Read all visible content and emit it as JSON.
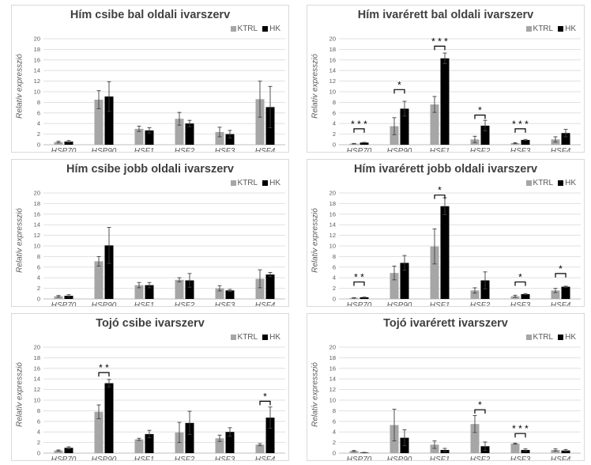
{
  "legend": {
    "ctrl": "KTRL",
    "heat": "HK"
  },
  "colors": {
    "ctrl": "#a6a6a6",
    "heat": "#000000",
    "grid": "#d9d9d9",
    "text": "#595959"
  },
  "chart_data": [
    {
      "type": "bar",
      "title": "Hím csibe bal oldali ivarszerv",
      "ylabel": "Relatív expresszió",
      "ylim": [
        0,
        20
      ],
      "yticks": [
        "0",
        "2",
        "4",
        "6",
        "8",
        "10",
        "12",
        "14",
        "16",
        "18",
        "20"
      ],
      "categories": [
        "HSP70",
        "HSP90",
        "HSF1",
        "HSF2",
        "HSF3",
        "HSF4"
      ],
      "series": [
        {
          "name": "KTRL",
          "values": [
            0.5,
            8.5,
            3.0,
            4.9,
            2.4,
            8.6
          ],
          "errors": [
            0.15,
            1.7,
            0.5,
            1.2,
            0.9,
            3.4
          ]
        },
        {
          "name": "HK",
          "values": [
            0.6,
            9.1,
            2.7,
            4.0,
            2.0,
            7.1
          ],
          "errors": [
            0.2,
            2.8,
            0.5,
            0.6,
            0.7,
            3.9
          ]
        }
      ],
      "significance": []
    },
    {
      "type": "bar",
      "title": "Hím ivarérett bal oldali ivarszerv",
      "ylabel": "Relatív expresszió",
      "ylim": [
        0,
        20
      ],
      "yticks": [
        "0",
        "2",
        "4",
        "6",
        "8",
        "10",
        "12",
        "14",
        "16",
        "18",
        "20"
      ],
      "categories": [
        "HSP70",
        "HSP90",
        "HSF1",
        "HSF2",
        "HSF3",
        "HSF4"
      ],
      "series": [
        {
          "name": "KTRL",
          "values": [
            0.2,
            3.5,
            7.6,
            1.0,
            0.3,
            1.0
          ],
          "errors": [
            0.05,
            1.6,
            1.5,
            0.6,
            0.1,
            0.5
          ]
        },
        {
          "name": "HK",
          "values": [
            0.4,
            6.8,
            16.3,
            3.6,
            0.9,
            2.2
          ],
          "errors": [
            0.05,
            1.4,
            1.0,
            1.0,
            0.1,
            0.7
          ]
        }
      ],
      "significance": [
        {
          "category": 0,
          "label": "* * *",
          "level": 3.0
        },
        {
          "category": 1,
          "label": "*",
          "level": 10.4
        },
        {
          "category": 2,
          "label": "* * *",
          "level": 18.6
        },
        {
          "category": 3,
          "label": "*",
          "level": 5.6
        },
        {
          "category": 4,
          "label": "* * *",
          "level": 3.0
        }
      ]
    },
    {
      "type": "bar",
      "title": "Hím csibe jobb oldali ivarszerv",
      "ylabel": "Relatív expresszió",
      "ylim": [
        0,
        20
      ],
      "yticks": [
        "0",
        "2",
        "4",
        "6",
        "8",
        "10",
        "12",
        "14",
        "16",
        "18",
        "20"
      ],
      "categories": [
        "HSP70",
        "HSP90",
        "HSF1",
        "HSF2",
        "HSF3",
        "HSF4"
      ],
      "series": [
        {
          "name": "KTRL",
          "values": [
            0.5,
            7.1,
            2.6,
            3.6,
            2.0,
            3.8
          ],
          "errors": [
            0.15,
            0.9,
            0.5,
            0.4,
            0.5,
            1.7
          ]
        },
        {
          "name": "HK",
          "values": [
            0.6,
            10.1,
            2.6,
            3.5,
            1.6,
            4.6
          ],
          "errors": [
            0.2,
            3.4,
            0.5,
            1.3,
            0.2,
            0.4
          ]
        }
      ],
      "significance": []
    },
    {
      "type": "bar",
      "title": "Hím ivarérett jobb oldali ivarszerv",
      "ylabel": "Relatív expresszió",
      "ylim": [
        0,
        20
      ],
      "yticks": [
        "0",
        "2",
        "4",
        "6",
        "8",
        "10",
        "12",
        "14",
        "16",
        "18",
        "20"
      ],
      "categories": [
        "HSP70",
        "HSP90",
        "HSF1",
        "HSF2",
        "HSF3",
        "HSF4"
      ],
      "series": [
        {
          "name": "KTRL",
          "values": [
            0.2,
            4.9,
            9.9,
            1.6,
            0.5,
            1.6
          ],
          "errors": [
            0.05,
            1.3,
            3.3,
            0.5,
            0.2,
            0.4
          ]
        },
        {
          "name": "HK",
          "values": [
            0.3,
            6.8,
            17.5,
            3.5,
            0.9,
            2.3
          ],
          "errors": [
            0.05,
            1.4,
            1.6,
            1.6,
            0.1,
            0.1
          ]
        }
      ],
      "significance": [
        {
          "category": 0,
          "label": "* *",
          "level": 3.2
        },
        {
          "category": 2,
          "label": "*",
          "level": 19.6
        },
        {
          "category": 4,
          "label": "*",
          "level": 3.2
        },
        {
          "category": 5,
          "label": "*",
          "level": 4.8
        }
      ]
    },
    {
      "type": "bar",
      "title": "Tojó csibe ivarszerv",
      "ylabel": "Relatív expresszió",
      "ylim": [
        0,
        20
      ],
      "yticks": [
        "0",
        "2",
        "4",
        "6",
        "8",
        "10",
        "12",
        "14",
        "16",
        "18",
        "20"
      ],
      "categories": [
        "HSP70",
        "HSP90",
        "HSF1",
        "HSF2",
        "HSF3",
        "HSF4"
      ],
      "series": [
        {
          "name": "KTRL",
          "values": [
            0.5,
            7.8,
            2.6,
            3.9,
            2.8,
            1.6
          ],
          "errors": [
            0.1,
            1.3,
            0.2,
            1.9,
            0.6,
            0.2
          ]
        },
        {
          "name": "HK",
          "values": [
            1.0,
            13.2,
            3.6,
            5.7,
            4.0,
            6.7
          ],
          "errors": [
            0.2,
            0.7,
            0.7,
            2.2,
            0.8,
            2.0
          ]
        }
      ],
      "significance": [
        {
          "category": 1,
          "label": "* *",
          "level": 15.2
        },
        {
          "category": 5,
          "label": "*",
          "level": 9.8
        }
      ]
    },
    {
      "type": "bar",
      "title": "Tojó ivarérett ivarszerv",
      "ylabel": "Relatív expresszió",
      "ylim": [
        0,
        20
      ],
      "yticks": [
        "0",
        "2",
        "4",
        "6",
        "8",
        "10",
        "12",
        "14",
        "16",
        "18",
        "20"
      ],
      "categories": [
        "HSP70",
        "HSP90",
        "HSF1",
        "HSF2",
        "HSF3",
        "HSF4"
      ],
      "series": [
        {
          "name": "KTRL",
          "values": [
            0.4,
            5.3,
            1.6,
            5.5,
            1.8,
            0.6
          ],
          "errors": [
            0.1,
            3.0,
            0.7,
            1.6,
            0.1,
            0.2
          ]
        },
        {
          "name": "HK",
          "values": [
            0.1,
            2.9,
            0.6,
            1.3,
            0.6,
            0.5
          ],
          "errors": [
            0.05,
            1.5,
            0.3,
            0.8,
            0.2,
            0.2
          ]
        }
      ],
      "significance": [
        {
          "category": 3,
          "label": "*",
          "level": 8.2
        },
        {
          "category": 4,
          "label": "* * *",
          "level": 3.7
        }
      ]
    }
  ]
}
